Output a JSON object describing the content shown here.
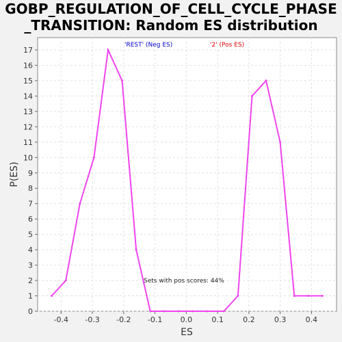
{
  "chart_data": {
    "type": "line",
    "title_line1": "GOBP_REGULATION_OF_CELL_CYCLE_PHASE",
    "title_line2": "_TRANSITION: Random ES distribution",
    "xlabel": "ES",
    "ylabel": "P(ES)",
    "xlim": [
      -0.475,
      0.48
    ],
    "ylim": [
      0,
      17.8
    ],
    "xticks": [
      -0.4,
      -0.3,
      -0.2,
      -0.1,
      0.0,
      0.1,
      0.2,
      0.3,
      0.4
    ],
    "xtick_labels": [
      "-0.4",
      "-0.3",
      "-0.2",
      "-0.1",
      "0.0",
      "0.1",
      "0.2",
      "0.3",
      "0.4"
    ],
    "yticks": [
      0,
      1,
      2,
      3,
      4,
      5,
      6,
      7,
      8,
      9,
      10,
      11,
      12,
      13,
      14,
      15,
      16,
      17
    ],
    "grid": true,
    "legend": [
      {
        "label": "'REST' (Neg ES)",
        "color": "#0000cc"
      },
      {
        "label": "'2' (Pos ES)",
        "color": "#dd0000"
      }
    ],
    "annotation": "Sets with pos scores: 44%",
    "series": [
      {
        "color": "#ee44ee",
        "x": [
          -0.43,
          -0.385,
          -0.34,
          -0.295,
          -0.25,
          -0.205,
          -0.16,
          -0.115,
          -0.07,
          -0.025,
          0.02,
          0.065,
          0.12,
          0.165,
          0.21,
          0.255,
          0.3,
          0.345,
          0.39,
          0.435
        ],
        "y": [
          1,
          2,
          7,
          10,
          17,
          15,
          4,
          0,
          0,
          0,
          0,
          0,
          0,
          1,
          14,
          15,
          11,
          1,
          1,
          1
        ]
      }
    ]
  }
}
